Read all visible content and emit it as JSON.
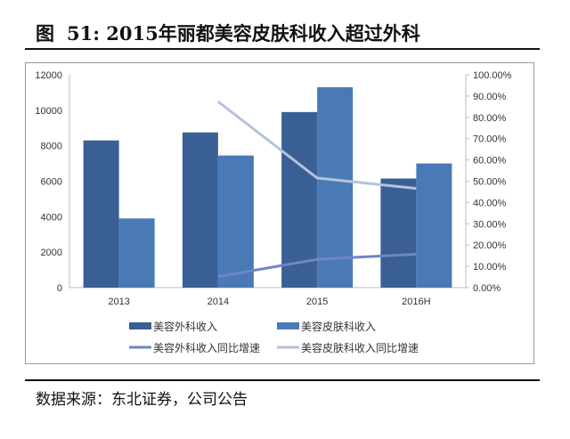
{
  "title": {
    "figure_label": "图",
    "number": "51:",
    "text": "2015年丽都美容皮肤科收入超过外科"
  },
  "source": "数据来源：东北证券，公司公告",
  "chart_data": {
    "type": "bar+line",
    "categories": [
      "2013",
      "2014",
      "2015",
      "2016H"
    ],
    "left_axis": {
      "ylim": [
        0,
        12000
      ],
      "ticks": [
        "0",
        "2000",
        "4000",
        "6000",
        "8000",
        "10000",
        "12000"
      ]
    },
    "right_axis": {
      "ylim": [
        0,
        100
      ],
      "ticks": [
        "0.00%",
        "10.00%",
        "20.00%",
        "30.00%",
        "40.00%",
        "50.00%",
        "60.00%",
        "70.00%",
        "80.00%",
        "90.00%",
        "100.00%"
      ]
    },
    "bar_series": [
      {
        "name": "美容外科收入",
        "values": [
          8300,
          8750,
          9900,
          6150
        ],
        "color": "#3a5f95"
      },
      {
        "name": "美容皮肤科收入",
        "values": [
          3900,
          7450,
          11300,
          7000
        ],
        "color": "#4a7ab5"
      }
    ],
    "line_series": [
      {
        "name": "美容外科收入同比增速",
        "values": [
          null,
          5.2,
          13.3,
          15.7
        ],
        "color": "#6e86c4"
      },
      {
        "name": "美容皮肤科收入同比增速",
        "values": [
          null,
          87.4,
          51.5,
          46.6
        ],
        "color": "#b4c3de"
      }
    ],
    "legend": "bottom",
    "grid": false
  }
}
